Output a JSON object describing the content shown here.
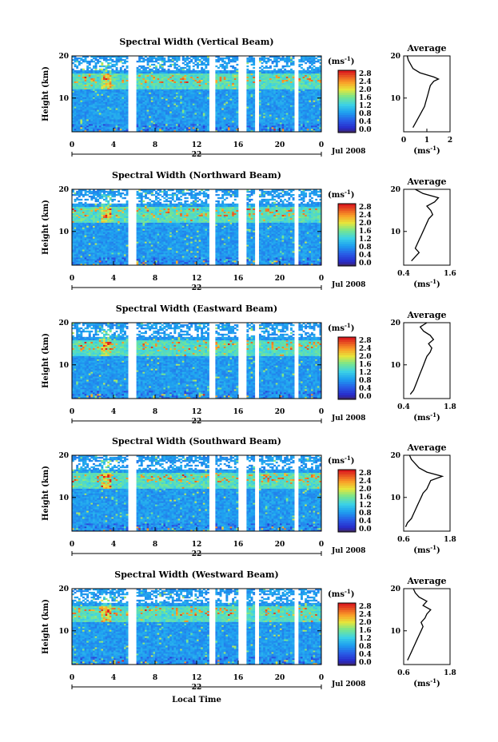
{
  "figure": {
    "x_axis_label": "Local Time",
    "month_label": "Jul 2008",
    "day_label": "22",
    "y_axis_label": "Height (km)",
    "colorbar_unit": "(ms",
    "colorbar_unit_exp": "-1",
    "colorbar_unit_close": ")",
    "colorbar_ticks": [
      "0.0",
      "0.4",
      "0.8",
      "1.2",
      "1.6",
      "2.0",
      "2.4",
      "2.8"
    ],
    "average_title": "Average",
    "x_ticks": [
      "0",
      "4",
      "8",
      "12",
      "16",
      "20",
      "0"
    ],
    "y_ticks": [
      "10",
      "20"
    ],
    "colors": {
      "low": "#2040c0",
      "mid": "#20a0e0",
      "high": "#e02020"
    }
  },
  "chart_data": [
    {
      "type": "heatmap",
      "title": "Spectral Width (Vertical Beam)",
      "x_range_hours": [
        0,
        24
      ],
      "y_range_km": [
        2,
        20
      ],
      "value_range_ms": [
        0.0,
        2.8
      ],
      "data_gaps_hours": [
        [
          5.5,
          6.3
        ],
        [
          13.1,
          13.7
        ],
        [
          16.0,
          16.7
        ],
        [
          17.6,
          17.9
        ],
        [
          21.4,
          21.7
        ]
      ],
      "average": {
        "xlim": [
          0,
          2
        ],
        "x_ticks": [
          "0",
          "1",
          "2"
        ],
        "profile": [
          [
            0.4,
            3
          ],
          [
            0.5,
            4
          ],
          [
            0.6,
            5
          ],
          [
            0.7,
            6
          ],
          [
            0.8,
            7
          ],
          [
            0.9,
            8
          ],
          [
            0.95,
            9
          ],
          [
            1.0,
            10
          ],
          [
            1.05,
            11
          ],
          [
            1.1,
            12
          ],
          [
            1.15,
            13
          ],
          [
            1.3,
            14
          ],
          [
            1.5,
            14.5
          ],
          [
            1.3,
            15
          ],
          [
            0.7,
            16
          ],
          [
            0.4,
            17
          ],
          [
            0.3,
            18
          ],
          [
            0.2,
            19
          ],
          [
            0.15,
            20
          ]
        ]
      }
    },
    {
      "type": "heatmap",
      "title": "Spectral Width (Northward Beam)",
      "x_range_hours": [
        0,
        24
      ],
      "y_range_km": [
        2,
        20
      ],
      "value_range_ms": [
        0.0,
        2.8
      ],
      "data_gaps_hours": [
        [
          5.5,
          6.3
        ],
        [
          13.1,
          13.7
        ],
        [
          16.0,
          16.7
        ],
        [
          17.6,
          17.9
        ],
        [
          21.4,
          21.7
        ]
      ],
      "average": {
        "xlim": [
          0.4,
          1.6
        ],
        "x_ticks": [
          "0.4",
          "1.6"
        ],
        "profile": [
          [
            0.6,
            3
          ],
          [
            0.7,
            4
          ],
          [
            0.8,
            5
          ],
          [
            0.7,
            6
          ],
          [
            0.75,
            7
          ],
          [
            0.8,
            8
          ],
          [
            0.85,
            9
          ],
          [
            0.9,
            10
          ],
          [
            0.95,
            11
          ],
          [
            1.0,
            12
          ],
          [
            1.05,
            13
          ],
          [
            1.15,
            14
          ],
          [
            1.1,
            15
          ],
          [
            1.0,
            16
          ],
          [
            1.2,
            17
          ],
          [
            1.3,
            18
          ],
          [
            0.9,
            19
          ],
          [
            0.7,
            20
          ]
        ]
      }
    },
    {
      "type": "heatmap",
      "title": "Spectral Width (Eastward Beam)",
      "x_range_hours": [
        0,
        24
      ],
      "y_range_km": [
        2,
        20
      ],
      "value_range_ms": [
        0.0,
        2.8
      ],
      "data_gaps_hours": [
        [
          5.5,
          6.3
        ],
        [
          13.1,
          13.7
        ],
        [
          16.0,
          16.7
        ],
        [
          17.6,
          17.9
        ],
        [
          21.4,
          21.7
        ]
      ],
      "average": {
        "xlim": [
          0.4,
          1.8
        ],
        "x_ticks": [
          "0.4",
          "1.8"
        ],
        "profile": [
          [
            0.6,
            3
          ],
          [
            0.7,
            4
          ],
          [
            0.75,
            5
          ],
          [
            0.8,
            6
          ],
          [
            0.85,
            7
          ],
          [
            0.9,
            8
          ],
          [
            0.95,
            9
          ],
          [
            1.0,
            10
          ],
          [
            1.05,
            11
          ],
          [
            1.1,
            12
          ],
          [
            1.2,
            13
          ],
          [
            1.25,
            14
          ],
          [
            1.15,
            15
          ],
          [
            1.3,
            16
          ],
          [
            1.2,
            17
          ],
          [
            1.0,
            18
          ],
          [
            0.9,
            19
          ],
          [
            1.1,
            20
          ]
        ]
      }
    },
    {
      "type": "heatmap",
      "title": "Spectral Width (Southward Beam)",
      "x_range_hours": [
        0,
        24
      ],
      "y_range_km": [
        2,
        20
      ],
      "value_range_ms": [
        0.0,
        2.8
      ],
      "data_gaps_hours": [
        [
          5.5,
          6.3
        ],
        [
          13.1,
          13.7
        ],
        [
          16.0,
          16.7
        ],
        [
          17.6,
          17.9
        ],
        [
          21.4,
          21.7
        ]
      ],
      "average": {
        "xlim": [
          0.6,
          1.8
        ],
        "x_ticks": [
          "0.6",
          "1.8"
        ],
        "profile": [
          [
            0.65,
            3
          ],
          [
            0.7,
            4
          ],
          [
            0.8,
            5
          ],
          [
            0.85,
            6
          ],
          [
            0.9,
            7
          ],
          [
            0.95,
            8
          ],
          [
            1.0,
            9
          ],
          [
            1.05,
            10
          ],
          [
            1.1,
            11
          ],
          [
            1.2,
            12
          ],
          [
            1.25,
            13
          ],
          [
            1.3,
            14
          ],
          [
            1.6,
            15
          ],
          [
            1.2,
            16
          ],
          [
            1.0,
            17
          ],
          [
            0.9,
            18
          ],
          [
            0.8,
            19
          ],
          [
            0.75,
            20
          ]
        ]
      }
    },
    {
      "type": "heatmap",
      "title": "Spectral Width (Westward Beam)",
      "x_range_hours": [
        0,
        24
      ],
      "y_range_km": [
        2,
        20
      ],
      "value_range_ms": [
        0.0,
        2.8
      ],
      "data_gaps_hours": [
        [
          5.5,
          6.3
        ],
        [
          13.1,
          13.7
        ],
        [
          16.0,
          16.7
        ],
        [
          17.6,
          17.9
        ],
        [
          21.4,
          21.7
        ]
      ],
      "average": {
        "xlim": [
          0.6,
          1.8
        ],
        "x_ticks": [
          "0.6",
          "1.8"
        ],
        "profile": [
          [
            0.7,
            3
          ],
          [
            0.75,
            4
          ],
          [
            0.8,
            5
          ],
          [
            0.85,
            6
          ],
          [
            0.9,
            7
          ],
          [
            0.95,
            8
          ],
          [
            1.0,
            9
          ],
          [
            1.05,
            10
          ],
          [
            1.1,
            11
          ],
          [
            1.05,
            12
          ],
          [
            1.15,
            13
          ],
          [
            1.2,
            14
          ],
          [
            1.3,
            15
          ],
          [
            1.1,
            16
          ],
          [
            1.2,
            17
          ],
          [
            1.0,
            18
          ],
          [
            0.9,
            19
          ],
          [
            0.85,
            20
          ]
        ]
      }
    }
  ]
}
